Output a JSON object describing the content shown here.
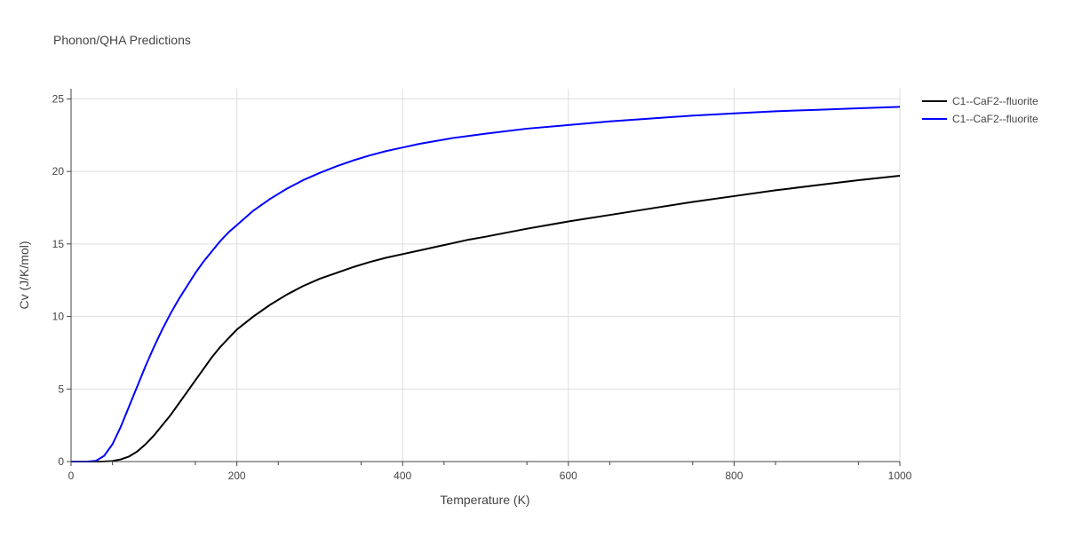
{
  "chart_data": {
    "type": "line",
    "title": "Phonon/QHA Predictions",
    "xlabel": "Temperature (K)",
    "ylabel": "Cv (J/K/mol)",
    "xlim": [
      0,
      1000
    ],
    "ylim": [
      0,
      25.7
    ],
    "x_ticks": [
      0,
      200,
      400,
      600,
      800,
      1000
    ],
    "y_ticks": [
      0,
      5,
      10,
      15,
      20,
      25
    ],
    "grid": true,
    "legend_position": "top-right",
    "series": [
      {
        "name": "C1--CaF2--fluorite",
        "color": "#000000",
        "x": [
          0,
          10,
          20,
          30,
          40,
          50,
          60,
          70,
          80,
          90,
          100,
          110,
          120,
          130,
          140,
          150,
          160,
          170,
          180,
          190,
          200,
          220,
          240,
          260,
          280,
          300,
          320,
          340,
          360,
          380,
          400,
          420,
          440,
          460,
          480,
          500,
          550,
          600,
          650,
          700,
          750,
          800,
          850,
          900,
          950,
          1000
        ],
        "y": [
          0,
          0,
          0,
          0,
          0.01,
          0.04,
          0.15,
          0.35,
          0.7,
          1.2,
          1.8,
          2.5,
          3.2,
          4.0,
          4.8,
          5.6,
          6.4,
          7.2,
          7.9,
          8.5,
          9.1,
          10.0,
          10.8,
          11.5,
          12.1,
          12.6,
          13.0,
          13.4,
          13.75,
          14.05,
          14.3,
          14.55,
          14.8,
          15.05,
          15.3,
          15.5,
          16.05,
          16.55,
          17.0,
          17.45,
          17.9,
          18.3,
          18.7,
          19.05,
          19.4,
          19.7
        ]
      },
      {
        "name": "C1--CaF2--fluorite",
        "color": "#0000ff",
        "x": [
          0,
          10,
          20,
          30,
          40,
          50,
          60,
          70,
          80,
          90,
          100,
          110,
          120,
          130,
          140,
          150,
          160,
          170,
          180,
          190,
          200,
          220,
          240,
          260,
          280,
          300,
          320,
          340,
          360,
          380,
          400,
          420,
          440,
          460,
          480,
          500,
          550,
          600,
          650,
          700,
          750,
          800,
          850,
          900,
          950,
          1000
        ],
        "y": [
          0,
          0,
          0,
          0.05,
          0.4,
          1.2,
          2.4,
          3.8,
          5.2,
          6.6,
          7.9,
          9.1,
          10.2,
          11.2,
          12.1,
          13.0,
          13.8,
          14.5,
          15.2,
          15.8,
          16.3,
          17.3,
          18.1,
          18.8,
          19.4,
          19.9,
          20.35,
          20.75,
          21.1,
          21.4,
          21.65,
          21.9,
          22.1,
          22.3,
          22.45,
          22.6,
          22.95,
          23.2,
          23.45,
          23.65,
          23.85,
          24.0,
          24.15,
          24.25,
          24.35,
          24.45
        ]
      }
    ]
  }
}
